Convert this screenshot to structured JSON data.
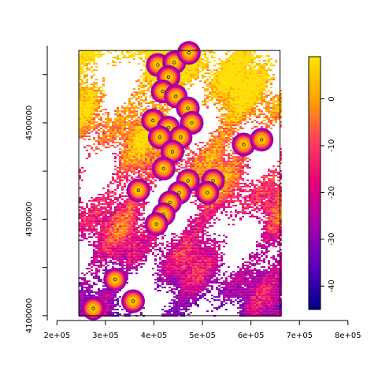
{
  "chart_data": {
    "type": "heatmap",
    "title": "",
    "xlabel": "",
    "ylabel": "",
    "x_ticks": [
      200000,
      300000,
      400000,
      500000,
      600000,
      700000,
      800000
    ],
    "x_tick_labels": [
      "2e+05",
      "3e+05",
      "4e+05",
      "5e+05",
      "6e+05",
      "7e+05",
      "8e+05"
    ],
    "y_ticks": [
      4100000,
      4300000,
      4500000
    ],
    "y_tick_labels": [
      "4100000",
      "4300000",
      "4500000"
    ],
    "xlim": [
      180000,
      810000
    ],
    "ylim": [
      4090000,
      4660000
    ],
    "raster_extent": {
      "xmin": 245000,
      "xmax": 660000,
      "ymin": 4100000,
      "ymax": 4650000
    },
    "colorbar": {
      "range": [
        -45,
        9
      ],
      "ticks": [
        0,
        -10,
        -20,
        -30,
        -40
      ],
      "tick_labels": [
        "0",
        "-10",
        "-20",
        "-30",
        "-40"
      ],
      "colors": [
        "#FFE500",
        "#FFA300",
        "#FF3F5A",
        "#E5007A",
        "#A500AA",
        "#5A00C0",
        "#000088"
      ]
    },
    "hotspots": [
      {
        "x": 408000,
        "y": 4620000,
        "value": 6
      },
      {
        "x": 442000,
        "y": 4625000,
        "value": 6
      },
      {
        "x": 472000,
        "y": 4645000,
        "value": 6
      },
      {
        "x": 430000,
        "y": 4595000,
        "value": 5
      },
      {
        "x": 418000,
        "y": 4565000,
        "value": 4
      },
      {
        "x": 445000,
        "y": 4555000,
        "value": 4
      },
      {
        "x": 470000,
        "y": 4530000,
        "value": 5
      },
      {
        "x": 478000,
        "y": 4500000,
        "value": 5
      },
      {
        "x": 398000,
        "y": 4505000,
        "value": 4
      },
      {
        "x": 430000,
        "y": 4490000,
        "value": 5
      },
      {
        "x": 455000,
        "y": 4470000,
        "value": 4
      },
      {
        "x": 412000,
        "y": 4470000,
        "value": 4
      },
      {
        "x": 438000,
        "y": 4440000,
        "value": 4
      },
      {
        "x": 420000,
        "y": 4405000,
        "value": 5
      },
      {
        "x": 470000,
        "y": 4380000,
        "value": 5
      },
      {
        "x": 452000,
        "y": 4355000,
        "value": 5
      },
      {
        "x": 433000,
        "y": 4335000,
        "value": 5
      },
      {
        "x": 420000,
        "y": 4310000,
        "value": 5
      },
      {
        "x": 405000,
        "y": 4290000,
        "value": 5
      },
      {
        "x": 368000,
        "y": 4360000,
        "value": 5
      },
      {
        "x": 522000,
        "y": 4380000,
        "value": 5
      },
      {
        "x": 510000,
        "y": 4355000,
        "value": 4
      },
      {
        "x": 585000,
        "y": 4455000,
        "value": 5
      },
      {
        "x": 622000,
        "y": 4465000,
        "value": 5
      },
      {
        "x": 320000,
        "y": 4175000,
        "value": 5
      },
      {
        "x": 357000,
        "y": 4130000,
        "value": 4
      },
      {
        "x": 275000,
        "y": 4115000,
        "value": 5
      }
    ]
  }
}
